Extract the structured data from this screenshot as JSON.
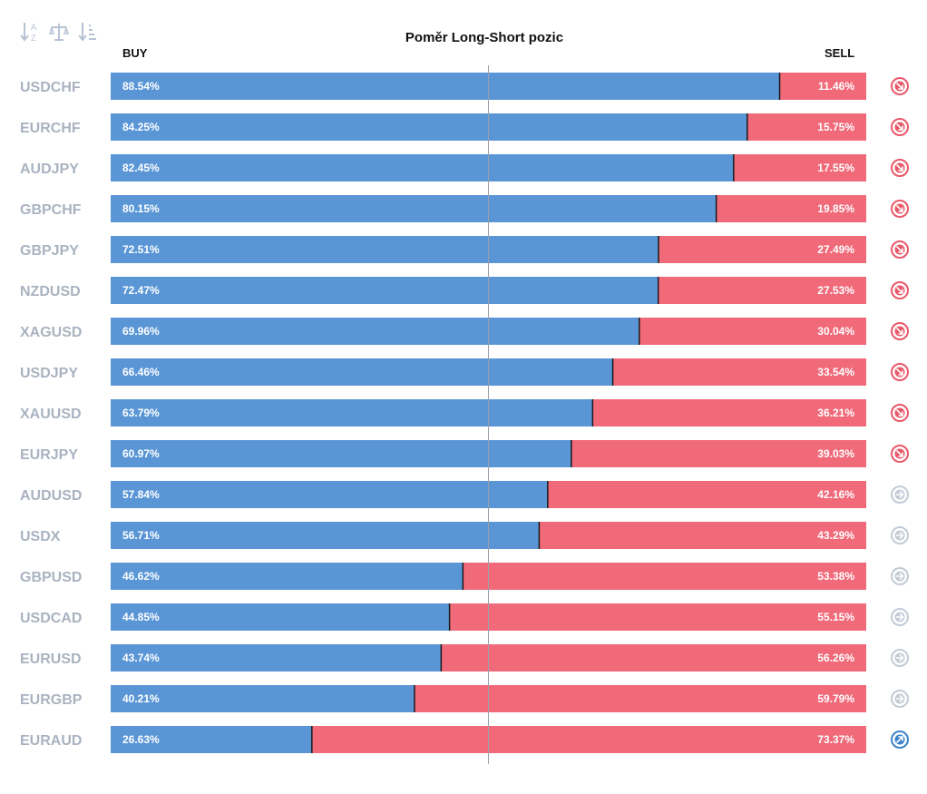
{
  "toolbar": {
    "icons": [
      "sort-alpha-icon",
      "balance-scale-icon",
      "sort-amount-icon"
    ]
  },
  "header": {
    "title": "Poměr Long-Short pozic",
    "buy_label": "BUY",
    "sell_label": "SELL"
  },
  "colors": {
    "buy": "#5a96d6",
    "sell": "#f06a7a",
    "down_icon": "#e8596a",
    "neutral_icon": "#c3cbd6",
    "up_icon": "#3b82c9",
    "pair_text": "#a9b3c0"
  },
  "chart_data": {
    "type": "bar",
    "stacked": true,
    "orientation": "horizontal",
    "title": "Poměr Long-Short pozic",
    "categories": [
      "USDCHF",
      "EURCHF",
      "AUDJPY",
      "GBPCHF",
      "GBPJPY",
      "NZDUSD",
      "XAGUSD",
      "USDJPY",
      "XAUUSD",
      "EURJPY",
      "AUDUSD",
      "USDX",
      "GBPUSD",
      "USDCAD",
      "EURUSD",
      "EURGBP",
      "EURAUD"
    ],
    "series": [
      {
        "name": "BUY",
        "values": [
          88.54,
          84.25,
          82.45,
          80.15,
          72.51,
          72.47,
          69.96,
          66.46,
          63.79,
          60.97,
          57.84,
          56.71,
          46.62,
          44.85,
          43.74,
          40.21,
          26.63
        ]
      },
      {
        "name": "SELL",
        "values": [
          11.46,
          15.75,
          17.55,
          19.85,
          27.49,
          27.53,
          30.04,
          33.54,
          36.21,
          39.03,
          42.16,
          43.29,
          53.38,
          55.15,
          56.26,
          59.79,
          73.37
        ]
      }
    ],
    "buy_labels": [
      "88.54%",
      "84.25%",
      "82.45%",
      "80.15%",
      "72.51%",
      "72.47%",
      "69.96%",
      "66.46%",
      "63.79%",
      "60.97%",
      "57.84%",
      "56.71%",
      "46.62%",
      "44.85%",
      "43.74%",
      "40.21%",
      "26.63%"
    ],
    "sell_labels": [
      "11.46%",
      "15.75%",
      "17.55%",
      "19.85%",
      "27.49%",
      "27.53%",
      "30.04%",
      "33.54%",
      "36.21%",
      "39.03%",
      "42.16%",
      "43.29%",
      "53.38%",
      "55.15%",
      "56.26%",
      "59.79%",
      "73.37%"
    ],
    "signals": [
      "down",
      "down",
      "down",
      "down",
      "down",
      "down",
      "down",
      "down",
      "down",
      "down",
      "neutral",
      "neutral",
      "neutral",
      "neutral",
      "neutral",
      "neutral",
      "up"
    ],
    "xlim": [
      0,
      100
    ],
    "reference_line": 50
  }
}
